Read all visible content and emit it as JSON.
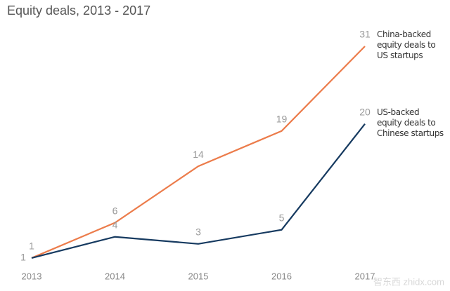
{
  "chart_data": {
    "type": "line",
    "title": "Equity deals, 2013 - 2017",
    "categories": [
      "2013",
      "2014",
      "2015",
      "2016",
      "2017"
    ],
    "series": [
      {
        "name": "China-backed equity deals to US startups",
        "color": "#ec7c4b",
        "values": [
          1,
          6,
          14,
          19,
          31
        ]
      },
      {
        "name": "US-backed equity deals to Chinese startups",
        "color": "#163a60",
        "values": [
          1,
          4,
          3,
          5,
          20
        ]
      }
    ],
    "watermark": "智东西 zhidx.com"
  }
}
